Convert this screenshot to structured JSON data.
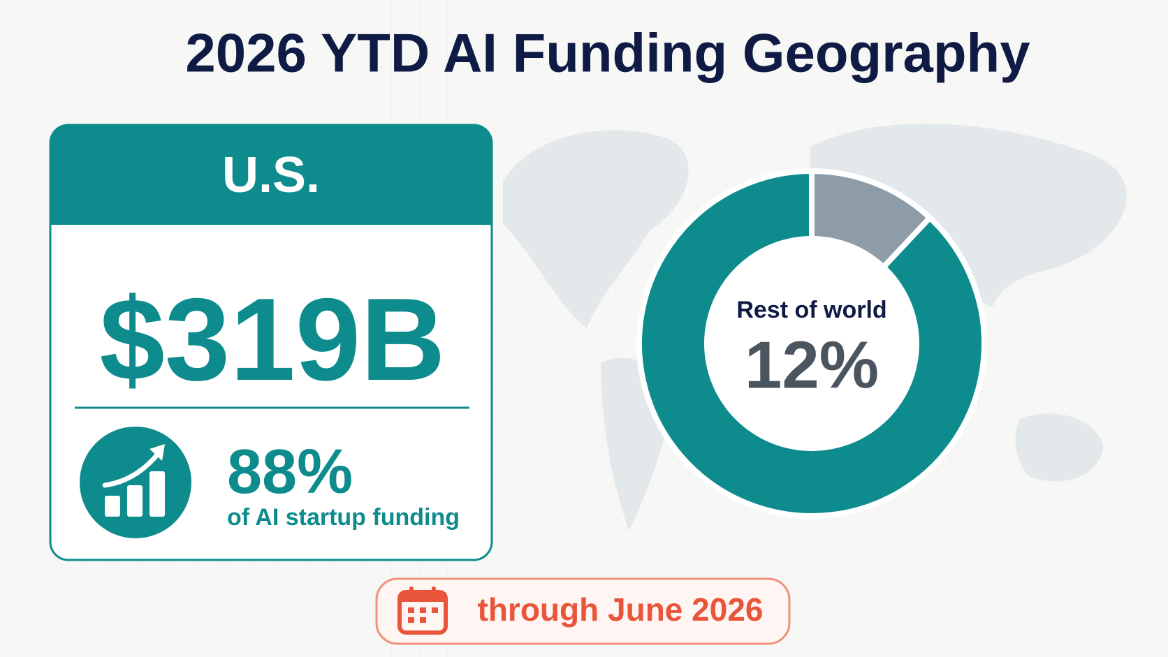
{
  "chart_data": {
    "type": "donut",
    "title": "2026 YTD AI Funding Geography",
    "categories": [
      "Rest of world",
      "U.S."
    ],
    "values": [
      12,
      88
    ],
    "value_labels": [
      "12%",
      "88%"
    ],
    "colors": [
      "#8d9ca6",
      "#0e8b8d"
    ],
    "annotations": [
      "$319B",
      "of AI startup funding",
      "through June 2026"
    ]
  }
}
